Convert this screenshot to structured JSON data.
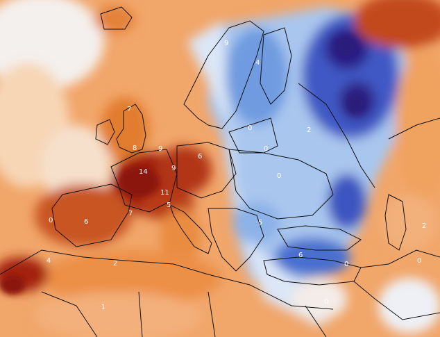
{
  "map": {
    "type": "temperature-anomaly",
    "color_scale": {
      "cold_deep": "#2a1d7a",
      "cold_strong": "#3b4fc0",
      "cold": "#6f9be0",
      "cool": "#b9d3f2",
      "neutral": "#f3f3f6",
      "warm_light": "#f7cba2",
      "warm": "#ef9a52",
      "warm_strong": "#d9651e",
      "hot": "#a72712",
      "hot_deep": "#8a1208",
      "border": "#111111"
    },
    "labels": [
      {
        "id": "britain-north",
        "text": "7"
      },
      {
        "id": "britain-south",
        "text": "8"
      },
      {
        "id": "north-sea",
        "text": "9"
      },
      {
        "id": "france",
        "text": "14"
      },
      {
        "id": "germany-west",
        "text": "9"
      },
      {
        "id": "germany-east",
        "text": "6"
      },
      {
        "id": "alps",
        "text": "11"
      },
      {
        "id": "italy-north",
        "text": "5"
      },
      {
        "id": "france-south",
        "text": "7"
      },
      {
        "id": "iberia-west",
        "text": "0"
      },
      {
        "id": "iberia",
        "text": "6"
      },
      {
        "id": "morocco",
        "text": "4"
      },
      {
        "id": "algeria",
        "text": "2"
      },
      {
        "id": "sahara",
        "text": "1"
      },
      {
        "id": "scandinavia",
        "text": "9"
      },
      {
        "id": "finland",
        "text": "4"
      },
      {
        "id": "russia-west",
        "text": "2"
      },
      {
        "id": "baltic",
        "text": "0"
      },
      {
        "id": "poland",
        "text": "0"
      },
      {
        "id": "ukraine",
        "text": "0"
      },
      {
        "id": "balkans",
        "text": "5"
      },
      {
        "id": "black-sea",
        "text": "6"
      },
      {
        "id": "turkey",
        "text": "0"
      },
      {
        "id": "caucasus",
        "text": "2"
      },
      {
        "id": "caspian",
        "text": "0"
      },
      {
        "id": "levant",
        "text": "0"
      }
    ]
  }
}
